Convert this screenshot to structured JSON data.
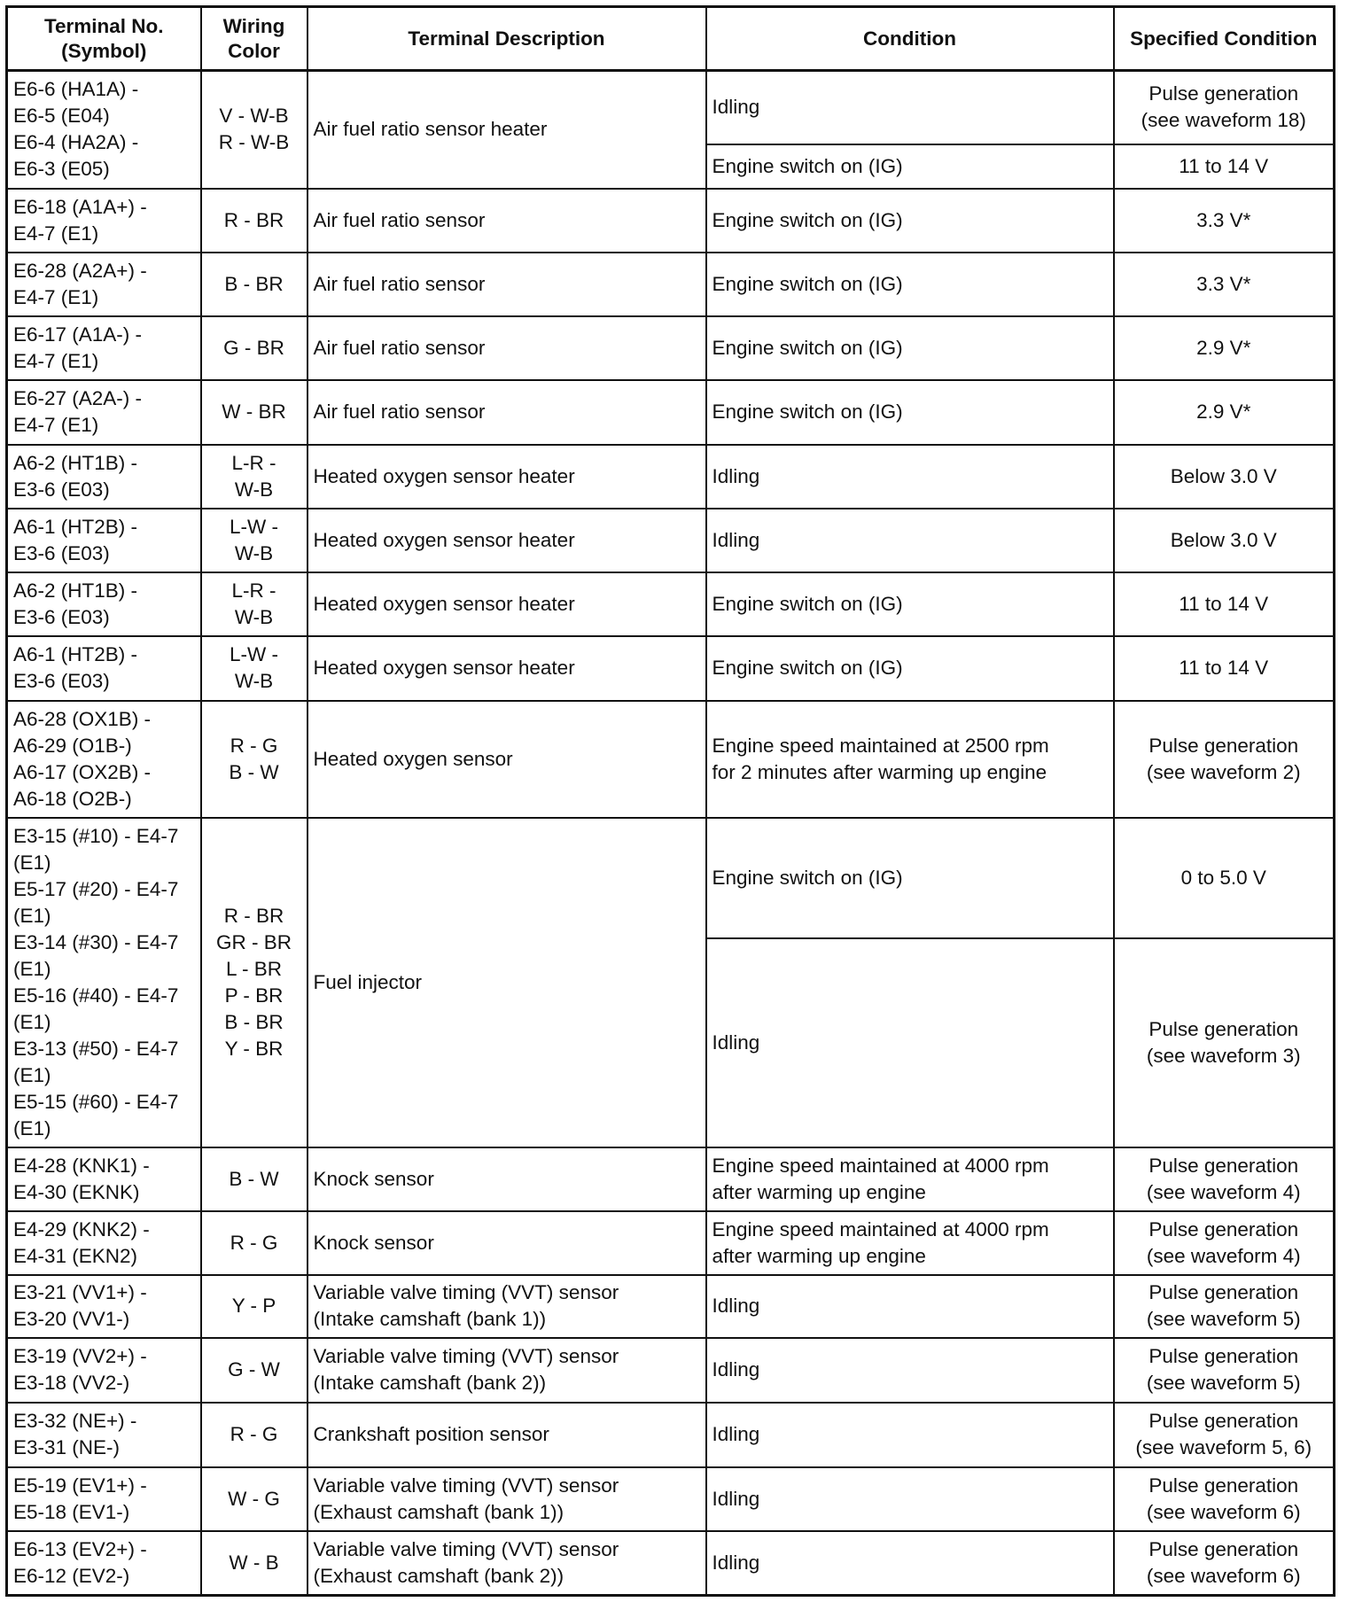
{
  "header": [
    "Terminal No.\n(Symbol)",
    "Wiring\nColor",
    "Terminal Description",
    "Condition",
    "Specified Condition"
  ],
  "rows": [
    {
      "terminal": "E6-6 (HA1A) -\nE6-5 (E04)\nE6-4 (HA2A) -\nE6-3 (E05)",
      "color": "V - W-B\nR - W-B",
      "description": "Air fuel ratio sensor heater",
      "conditions": [
        {
          "condition": "Idling",
          "spec": "Pulse generation\n(see waveform 18)"
        },
        {
          "condition": "Engine switch on (IG)",
          "spec": "11 to 14 V"
        }
      ]
    },
    {
      "terminal": "E6-18 (A1A+) -\nE4-7 (E1)",
      "color": "R - BR",
      "description": "Air fuel ratio sensor",
      "conditions": [
        {
          "condition": "Engine switch on (IG)",
          "spec": "3.3 V*"
        }
      ]
    },
    {
      "terminal": "E6-28 (A2A+) -\nE4-7 (E1)",
      "color": "B - BR",
      "description": "Air fuel ratio sensor",
      "conditions": [
        {
          "condition": "Engine switch on (IG)",
          "spec": "3.3 V*"
        }
      ]
    },
    {
      "terminal": "E6-17 (A1A-) -\nE4-7 (E1)",
      "color": "G - BR",
      "description": "Air fuel ratio sensor",
      "conditions": [
        {
          "condition": "Engine switch on (IG)",
          "spec": "2.9 V*"
        }
      ]
    },
    {
      "terminal": "E6-27 (A2A-) -\nE4-7 (E1)",
      "color": "W - BR",
      "description": "Air fuel ratio sensor",
      "conditions": [
        {
          "condition": "Engine switch on (IG)",
          "spec": "2.9 V*"
        }
      ]
    },
    {
      "terminal": "A6-2 (HT1B) -\nE3-6 (E03)",
      "color": "L-R -\nW-B",
      "description": "Heated oxygen sensor heater",
      "conditions": [
        {
          "condition": "Idling",
          "spec": "Below 3.0 V"
        }
      ]
    },
    {
      "terminal": "A6-1 (HT2B) -\nE3-6 (E03)",
      "color": "L-W -\nW-B",
      "description": "Heated oxygen sensor heater",
      "conditions": [
        {
          "condition": "Idling",
          "spec": "Below 3.0 V"
        }
      ]
    },
    {
      "terminal": "A6-2 (HT1B) -\nE3-6 (E03)",
      "color": "L-R -\nW-B",
      "description": "Heated oxygen sensor heater",
      "conditions": [
        {
          "condition": "Engine switch on (IG)",
          "spec": "11 to 14 V"
        }
      ]
    },
    {
      "terminal": "A6-1 (HT2B) -\nE3-6 (E03)",
      "color": "L-W -\nW-B",
      "description": "Heated oxygen sensor heater",
      "conditions": [
        {
          "condition": "Engine switch on (IG)",
          "spec": "11 to 14 V"
        }
      ]
    },
    {
      "terminal": "A6-28 (OX1B) -\nA6-29 (O1B-)\nA6-17 (OX2B) -\nA6-18 (O2B-)",
      "color": "R - G\nB - W",
      "description": "Heated oxygen sensor",
      "conditions": [
        {
          "condition": "Engine speed maintained at 2500 rpm\nfor 2 minutes after warming up engine",
          "spec": "Pulse generation\n(see waveform 2)"
        }
      ]
    },
    {
      "terminal": "E3-15 (#10) - E4-7\n(E1)\nE5-17 (#20) - E4-7\n(E1)\nE3-14 (#30) - E4-7\n(E1)\nE5-16 (#40) - E4-7\n(E1)\nE3-13 (#50) - E4-7\n(E1)\nE5-15 (#60) - E4-7\n(E1)",
      "color": "R - BR\nGR - BR\nL - BR\nP - BR\nB - BR\nY - BR",
      "description": "Fuel injector",
      "conditions": [
        {
          "condition": "Engine switch on (IG)",
          "spec": "0 to 5.0 V"
        },
        {
          "condition": "Idling",
          "spec": "Pulse generation\n(see waveform 3)"
        }
      ]
    },
    {
      "terminal": "E4-28 (KNK1) -\nE4-30 (EKNK)",
      "color": "B - W",
      "description": "Knock sensor",
      "conditions": [
        {
          "condition": "Engine speed maintained at 4000 rpm\nafter warming up engine",
          "spec": "Pulse generation\n(see waveform 4)"
        }
      ]
    },
    {
      "terminal": "E4-29 (KNK2) -\nE4-31 (EKN2)",
      "color": "R - G",
      "description": "Knock sensor",
      "conditions": [
        {
          "condition": "Engine speed maintained at 4000 rpm\nafter warming up engine",
          "spec": "Pulse generation\n(see waveform 4)"
        }
      ]
    },
    {
      "terminal": "E3-21 (VV1+) -\nE3-20 (VV1-)",
      "color": "Y - P",
      "description": "Variable valve timing (VVT) sensor\n(Intake camshaft (bank 1))",
      "conditions": [
        {
          "condition": "Idling",
          "spec": "Pulse generation\n(see waveform 5)"
        }
      ]
    },
    {
      "terminal": "E3-19 (VV2+) -\nE3-18 (VV2-)",
      "color": "G - W",
      "description": "Variable valve timing (VVT) sensor\n(Intake camshaft (bank 2))",
      "conditions": [
        {
          "condition": "Idling",
          "spec": "Pulse generation\n(see waveform 5)"
        }
      ]
    },
    {
      "terminal": "E3-32 (NE+) -\nE3-31 (NE-)",
      "color": "R - G",
      "description": "Crankshaft position sensor",
      "conditions": [
        {
          "condition": "Idling",
          "spec": "Pulse generation\n(see waveform 5, 6)"
        }
      ]
    },
    {
      "terminal": "E5-19 (EV1+) -\nE5-18 (EV1-)",
      "color": "W - G",
      "description": "Variable valve timing (VVT) sensor\n(Exhaust camshaft (bank 1))",
      "conditions": [
        {
          "condition": "Idling",
          "spec": "Pulse generation\n(see waveform 6)"
        }
      ]
    },
    {
      "terminal": "E6-13 (EV2+) -\nE6-12 (EV2-)",
      "color": "W - B",
      "description": "Variable valve timing (VVT) sensor\n(Exhaust camshaft (bank 2))",
      "conditions": [
        {
          "condition": "Idling",
          "spec": "Pulse generation\n(see waveform 6)"
        }
      ]
    }
  ]
}
